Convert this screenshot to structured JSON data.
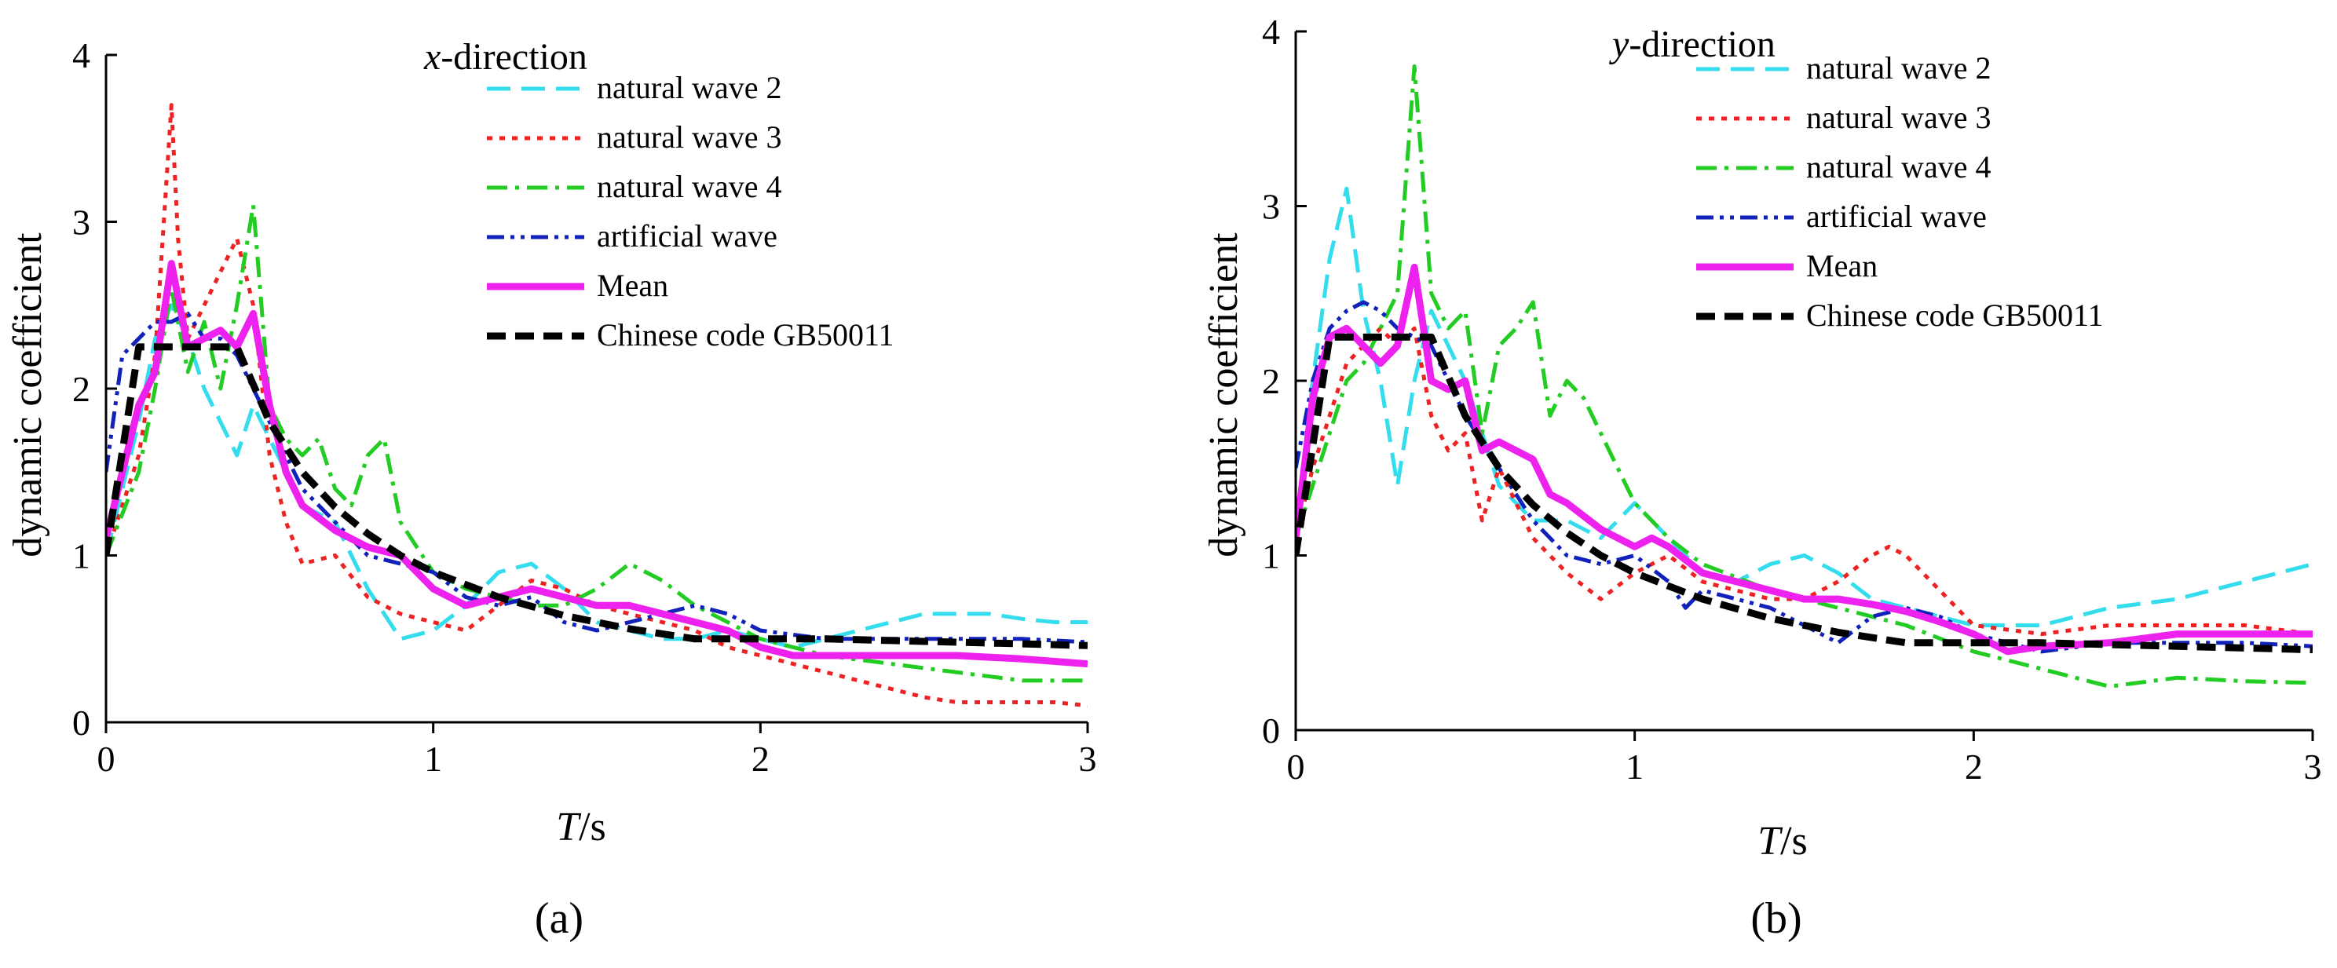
{
  "figure": {
    "panel_labels": [
      "(a)",
      "(b)"
    ]
  },
  "colors": {
    "natural wave 2": "#33ddee",
    "natural wave 3": "#ee2222",
    "natural wave 4": "#22cc22",
    "artificial wave": "#1122bb",
    "Mean": "#ee22ee",
    "Chinese code GB50011": "#000000"
  },
  "chart_data": [
    {
      "type": "line",
      "panel": "(a)",
      "title_italic": "x",
      "title_rest": "-direction",
      "xlabel_italic": "T",
      "xlabel_rest": "/s",
      "ylabel": "dynamic coefficient",
      "xlim": [
        0,
        3
      ],
      "ylim": [
        0,
        4
      ],
      "xticks": [
        0,
        1,
        2,
        3
      ],
      "yticks": [
        0,
        1,
        2,
        3,
        4
      ],
      "legend": [
        "natural wave 2",
        "natural wave 3",
        "natural wave 4",
        "artificial wave",
        "Mean",
        "Chinese code GB50011"
      ],
      "series": [
        {
          "name": "natural wave 2",
          "style": "dash",
          "x": [
            0,
            0.05,
            0.1,
            0.15,
            0.2,
            0.25,
            0.3,
            0.35,
            0.4,
            0.45,
            0.5,
            0.6,
            0.7,
            0.8,
            0.9,
            1.0,
            1.1,
            1.2,
            1.3,
            1.4,
            1.5,
            1.6,
            1.7,
            1.8,
            1.9,
            2.0,
            2.1,
            2.2,
            2.3,
            2.4,
            2.5,
            2.6,
            2.7,
            2.8,
            2.9,
            3.0
          ],
          "y": [
            1.0,
            1.4,
            1.8,
            2.3,
            2.5,
            2.3,
            2.0,
            1.8,
            1.6,
            1.9,
            1.7,
            1.3,
            1.2,
            0.8,
            0.5,
            0.55,
            0.7,
            0.9,
            0.95,
            0.8,
            0.6,
            0.55,
            0.5,
            0.5,
            0.55,
            0.5,
            0.45,
            0.5,
            0.55,
            0.6,
            0.65,
            0.65,
            0.65,
            0.62,
            0.6,
            0.6
          ]
        },
        {
          "name": "natural wave 3",
          "style": "dot",
          "x": [
            0,
            0.05,
            0.1,
            0.15,
            0.2,
            0.22,
            0.25,
            0.3,
            0.35,
            0.4,
            0.45,
            0.5,
            0.55,
            0.6,
            0.7,
            0.8,
            0.9,
            1.0,
            1.1,
            1.2,
            1.3,
            1.4,
            1.5,
            1.6,
            1.7,
            1.8,
            1.9,
            2.0,
            2.1,
            2.2,
            2.3,
            2.4,
            2.5,
            2.6,
            2.7,
            2.8,
            2.9,
            3.0
          ],
          "y": [
            1.0,
            1.3,
            1.6,
            2.2,
            3.7,
            2.9,
            2.3,
            2.5,
            2.7,
            2.9,
            2.5,
            1.6,
            1.2,
            0.95,
            1.0,
            0.75,
            0.65,
            0.6,
            0.55,
            0.7,
            0.85,
            0.8,
            0.7,
            0.65,
            0.6,
            0.55,
            0.45,
            0.4,
            0.35,
            0.3,
            0.25,
            0.2,
            0.15,
            0.12,
            0.12,
            0.12,
            0.12,
            0.1
          ]
        },
        {
          "name": "natural wave 4",
          "style": "dashdot",
          "x": [
            0,
            0.1,
            0.15,
            0.2,
            0.25,
            0.3,
            0.35,
            0.4,
            0.45,
            0.5,
            0.55,
            0.6,
            0.65,
            0.7,
            0.75,
            0.8,
            0.85,
            0.9,
            1.0,
            1.1,
            1.2,
            1.3,
            1.4,
            1.5,
            1.6,
            1.7,
            1.8,
            1.9,
            2.0,
            2.2,
            2.4,
            2.6,
            2.8,
            3.0
          ],
          "y": [
            1.0,
            1.5,
            2.0,
            2.6,
            2.1,
            2.4,
            2.0,
            2.5,
            3.1,
            1.9,
            1.7,
            1.6,
            1.7,
            1.4,
            1.3,
            1.6,
            1.7,
            1.2,
            0.9,
            0.8,
            0.75,
            0.7,
            0.7,
            0.8,
            0.95,
            0.85,
            0.7,
            0.6,
            0.5,
            0.4,
            0.35,
            0.3,
            0.25,
            0.25
          ]
        },
        {
          "name": "artificial wave",
          "style": "dashdotdot",
          "x": [
            0,
            0.05,
            0.1,
            0.15,
            0.2,
            0.25,
            0.3,
            0.35,
            0.4,
            0.45,
            0.5,
            0.6,
            0.7,
            0.8,
            0.9,
            1.0,
            1.1,
            1.2,
            1.3,
            1.4,
            1.5,
            1.6,
            1.7,
            1.8,
            1.9,
            2.0,
            2.2,
            2.4,
            2.6,
            2.8,
            3.0
          ],
          "y": [
            1.5,
            2.2,
            2.3,
            2.4,
            2.4,
            2.45,
            2.3,
            2.3,
            2.2,
            2.0,
            1.8,
            1.4,
            1.2,
            1.0,
            0.95,
            0.9,
            0.75,
            0.7,
            0.75,
            0.6,
            0.55,
            0.6,
            0.65,
            0.7,
            0.65,
            0.55,
            0.5,
            0.5,
            0.5,
            0.5,
            0.48
          ]
        },
        {
          "name": "Mean",
          "style": "solid",
          "x": [
            0,
            0.05,
            0.1,
            0.15,
            0.2,
            0.25,
            0.3,
            0.35,
            0.4,
            0.45,
            0.5,
            0.55,
            0.6,
            0.7,
            0.8,
            0.9,
            1.0,
            1.1,
            1.2,
            1.3,
            1.4,
            1.5,
            1.6,
            1.7,
            1.8,
            1.9,
            2.0,
            2.1,
            2.2,
            2.4,
            2.6,
            2.8,
            3.0
          ],
          "y": [
            1.1,
            1.5,
            1.9,
            2.1,
            2.75,
            2.25,
            2.3,
            2.35,
            2.25,
            2.45,
            1.9,
            1.5,
            1.3,
            1.15,
            1.05,
            1.0,
            0.8,
            0.7,
            0.75,
            0.8,
            0.75,
            0.7,
            0.7,
            0.65,
            0.6,
            0.55,
            0.45,
            0.4,
            0.4,
            0.4,
            0.4,
            0.38,
            0.35
          ]
        },
        {
          "name": "Chinese code GB50011",
          "style": "bigdash",
          "x": [
            0,
            0.1,
            0.4,
            0.5,
            0.6,
            0.7,
            0.8,
            0.9,
            1.0,
            1.2,
            1.4,
            1.6,
            1.8,
            2.0,
            2.2,
            2.4,
            2.6,
            2.8,
            3.0
          ],
          "y": [
            1.0,
            2.25,
            2.25,
            1.8,
            1.5,
            1.29,
            1.13,
            1.0,
            0.9,
            0.75,
            0.64,
            0.56,
            0.5,
            0.5,
            0.5,
            0.49,
            0.48,
            0.47,
            0.46
          ]
        }
      ]
    },
    {
      "type": "line",
      "panel": "(b)",
      "title_italic": "y",
      "title_rest": "-direction",
      "xlabel_italic": "T",
      "xlabel_rest": "/s",
      "ylabel": "dynamic coefficient",
      "xlim": [
        0,
        3
      ],
      "ylim": [
        0,
        4
      ],
      "xticks": [
        0,
        1,
        2,
        3
      ],
      "yticks": [
        0,
        1,
        2,
        3,
        4
      ],
      "legend": [
        "natural wave 2",
        "natural wave 3",
        "natural wave 4",
        "artificial wave",
        "Mean",
        "Chinese code GB50011"
      ],
      "series": [
        {
          "name": "natural wave 2",
          "style": "dash",
          "x": [
            0,
            0.05,
            0.1,
            0.15,
            0.2,
            0.25,
            0.3,
            0.35,
            0.4,
            0.45,
            0.5,
            0.6,
            0.7,
            0.8,
            0.9,
            1.0,
            1.1,
            1.2,
            1.3,
            1.4,
            1.5,
            1.6,
            1.7,
            1.8,
            1.9,
            2.0,
            2.2,
            2.4,
            2.6,
            2.8,
            3.0
          ],
          "y": [
            1.1,
            2.0,
            2.7,
            3.1,
            2.4,
            2.0,
            1.4,
            2.0,
            2.4,
            2.2,
            2.0,
            1.4,
            1.2,
            1.2,
            1.1,
            1.3,
            1.1,
            0.9,
            0.85,
            0.95,
            1.0,
            0.9,
            0.75,
            0.7,
            0.65,
            0.6,
            0.6,
            0.7,
            0.75,
            0.85,
            0.95
          ]
        },
        {
          "name": "natural wave 3",
          "style": "dot",
          "x": [
            0,
            0.05,
            0.1,
            0.15,
            0.2,
            0.25,
            0.3,
            0.35,
            0.4,
            0.45,
            0.5,
            0.55,
            0.6,
            0.7,
            0.8,
            0.9,
            1.0,
            1.1,
            1.2,
            1.3,
            1.4,
            1.5,
            1.6,
            1.7,
            1.75,
            1.8,
            1.9,
            2.0,
            2.2,
            2.4,
            2.6,
            2.8,
            3.0
          ],
          "y": [
            1.1,
            1.5,
            1.8,
            2.1,
            2.2,
            2.3,
            2.2,
            2.3,
            1.8,
            1.6,
            1.7,
            1.2,
            1.5,
            1.1,
            0.9,
            0.75,
            0.9,
            1.0,
            0.85,
            0.8,
            0.75,
            0.75,
            0.85,
            1.0,
            1.05,
            1.0,
            0.8,
            0.6,
            0.55,
            0.6,
            0.6,
            0.6,
            0.55
          ]
        },
        {
          "name": "natural wave 4",
          "style": "dashdot",
          "x": [
            0,
            0.05,
            0.1,
            0.15,
            0.2,
            0.25,
            0.3,
            0.35,
            0.4,
            0.45,
            0.5,
            0.55,
            0.6,
            0.65,
            0.7,
            0.75,
            0.8,
            0.85,
            0.9,
            1.0,
            1.1,
            1.2,
            1.4,
            1.6,
            1.8,
            2.0,
            2.2,
            2.4,
            2.6,
            2.8,
            3.0
          ],
          "y": [
            1.1,
            1.4,
            1.7,
            2.0,
            2.1,
            2.3,
            2.5,
            3.8,
            2.5,
            2.3,
            2.4,
            1.7,
            2.2,
            2.3,
            2.45,
            1.8,
            2.0,
            1.9,
            1.7,
            1.3,
            1.1,
            0.95,
            0.8,
            0.7,
            0.6,
            0.45,
            0.35,
            0.25,
            0.3,
            0.28,
            0.27
          ]
        },
        {
          "name": "artificial wave",
          "style": "dashdotdot",
          "x": [
            0,
            0.05,
            0.1,
            0.15,
            0.2,
            0.25,
            0.3,
            0.35,
            0.4,
            0.45,
            0.5,
            0.6,
            0.7,
            0.8,
            0.9,
            1.0,
            1.1,
            1.15,
            1.2,
            1.3,
            1.4,
            1.5,
            1.6,
            1.7,
            1.8,
            1.9,
            2.0,
            2.2,
            2.4,
            2.6,
            2.8,
            3.0
          ],
          "y": [
            1.5,
            2.0,
            2.3,
            2.4,
            2.45,
            2.4,
            2.3,
            2.25,
            2.2,
            2.0,
            1.8,
            1.5,
            1.2,
            1.0,
            0.95,
            1.0,
            0.85,
            0.7,
            0.8,
            0.75,
            0.7,
            0.6,
            0.5,
            0.65,
            0.7,
            0.65,
            0.55,
            0.45,
            0.5,
            0.5,
            0.5,
            0.48
          ]
        },
        {
          "name": "Mean",
          "style": "solid",
          "x": [
            0,
            0.05,
            0.1,
            0.15,
            0.2,
            0.25,
            0.3,
            0.35,
            0.4,
            0.45,
            0.5,
            0.55,
            0.6,
            0.7,
            0.75,
            0.8,
            0.9,
            1.0,
            1.05,
            1.1,
            1.2,
            1.3,
            1.4,
            1.5,
            1.6,
            1.7,
            1.8,
            1.9,
            2.0,
            2.1,
            2.2,
            2.4,
            2.6,
            2.8,
            3.0
          ],
          "y": [
            1.1,
            1.9,
            2.25,
            2.3,
            2.2,
            2.1,
            2.2,
            2.65,
            2.0,
            1.95,
            2.0,
            1.6,
            1.65,
            1.55,
            1.35,
            1.3,
            1.15,
            1.05,
            1.1,
            1.05,
            0.9,
            0.85,
            0.8,
            0.75,
            0.75,
            0.72,
            0.68,
            0.62,
            0.55,
            0.45,
            0.48,
            0.5,
            0.55,
            0.55,
            0.55
          ]
        },
        {
          "name": "Chinese code GB50011",
          "style": "bigdash",
          "x": [
            0,
            0.1,
            0.4,
            0.5,
            0.6,
            0.7,
            0.8,
            0.9,
            1.0,
            1.2,
            1.4,
            1.6,
            1.8,
            2.0,
            2.2,
            2.4,
            2.6,
            2.8,
            3.0
          ],
          "y": [
            1.0,
            2.25,
            2.25,
            1.8,
            1.5,
            1.29,
            1.13,
            1.0,
            0.9,
            0.75,
            0.64,
            0.56,
            0.5,
            0.5,
            0.5,
            0.49,
            0.48,
            0.47,
            0.46
          ]
        }
      ]
    }
  ]
}
